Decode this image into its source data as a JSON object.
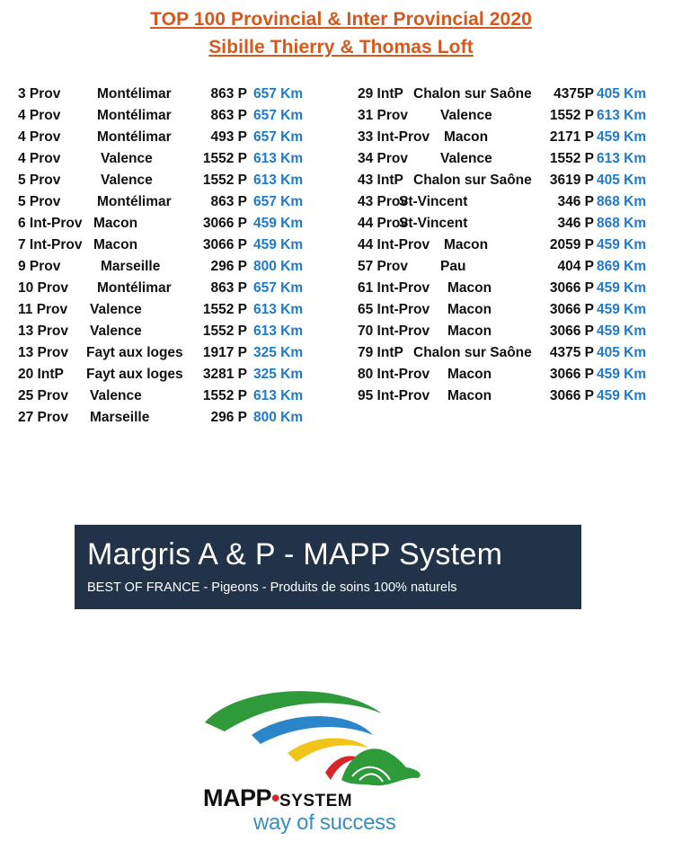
{
  "title_line1": "TOP 100 Provincial & Inter Provincial 2020",
  "title_line2": "Sibille Thierry & Thomas Loft",
  "left_rows": [
    {
      "rank": "3",
      "race": "Prov",
      "place": "Montélimar",
      "points": "863 P",
      "km": "657 Km"
    },
    {
      "rank": "4",
      "race": "Prov",
      "place": "Montélimar",
      "points": "863 P",
      "km": "657 Km"
    },
    {
      "rank": "4",
      "race": "Prov",
      "place": "Montélimar",
      "points": "493 P",
      "km": "657 Km"
    },
    {
      "rank": "4",
      "race": "Prov",
      "place": "Valence",
      "points": "1552 P",
      "km": "613 Km"
    },
    {
      "rank": "5",
      "race": "Prov",
      "place": "Valence",
      "points": "1552 P",
      "km": "613 Km"
    },
    {
      "rank": "5",
      "race": "Prov",
      "place": "Montélimar",
      "points": "863 P",
      "km": "657 Km"
    },
    {
      "rank": "6",
      "race": "Int-Prov",
      "place": "Macon",
      "points": "3066 P",
      "km": "459 Km"
    },
    {
      "rank": "7",
      "race": "Int-Prov",
      "place": "Macon",
      "points": "3066 P",
      "km": "459 Km"
    },
    {
      "rank": "9",
      "race": "Prov",
      "place": "Marseille",
      "points": "296 P",
      "km": "800 Km"
    },
    {
      "rank": "10",
      "race": "Prov",
      "place": "Montélimar",
      "points": "863 P",
      "km": "657 Km"
    },
    {
      "rank": "11",
      "race": "Prov",
      "place": "Valence",
      "points": "1552 P",
      "km": "613 Km"
    },
    {
      "rank": "13",
      "race": "Prov",
      "place": "Valence",
      "points": "1552 P",
      "km": "613 Km"
    },
    {
      "rank": "13",
      "race": "Prov",
      "place": "Fayt aux loges",
      "points": "1917 P",
      "km": "325 Km"
    },
    {
      "rank": "20",
      "race": "IntP",
      "place": "Fayt aux loges",
      "points": "3281 P",
      "km": "325 Km"
    },
    {
      "rank": "25",
      "race": "Prov",
      "place": "Valence",
      "points": "1552 P",
      "km": "613 Km"
    },
    {
      "rank": "27",
      "race": "Prov",
      "place": "Marseille",
      "points": "296  P",
      "km": "800 Km"
    }
  ],
  "right_rows": [
    {
      "rank": "29",
      "race": "IntP",
      "place": "Chalon sur Saône",
      "points": "4375P",
      "km": "405 Km"
    },
    {
      "rank": "31",
      "race": "Prov",
      "place": "Valence",
      "points": "1552 P",
      "km": "613 Km"
    },
    {
      "rank": "33",
      "race": "Int-Prov",
      "place": "Macon",
      "points": "2171 P",
      "km": "459 Km"
    },
    {
      "rank": "34",
      "race": "Prov",
      "place": "Valence",
      "points": "1552 P",
      "km": "613 Km"
    },
    {
      "rank": "43",
      "race": "IntP",
      "place": "Chalon sur Saône",
      "points": "3619 P",
      "km": "405 Km"
    },
    {
      "rank": "43",
      "race": "Prov",
      "place": "St-Vincent",
      "points": "346  P",
      "km": "868 Km"
    },
    {
      "rank": "44",
      "race": "Prov",
      "place": "St-Vincent",
      "points": "346  P",
      "km": "868 Km"
    },
    {
      "rank": "44",
      "race": "Int-Prov",
      "place": "Macon",
      "points": "2059  P",
      "km": "459 Km"
    },
    {
      "rank": "57",
      "race": "Prov",
      "place": "Pau",
      "points": "404  P",
      "km": "869 Km"
    },
    {
      "rank": "61",
      "race": "Int-Prov",
      "place": "Macon",
      "points": "3066  P",
      "km": "459 Km"
    },
    {
      "rank": "65",
      "race": "Int-Prov",
      "place": "Macon",
      "points": "3066  P",
      "km": "459 Km"
    },
    {
      "rank": "70",
      "race": "Int-Prov",
      "place": "Macon",
      "points": "3066  P",
      "km": "459 Km"
    },
    {
      "rank": "79",
      "race": "IntP",
      "place": "Chalon sur Saône",
      "points": "4375 P",
      "km": "405 Km"
    },
    {
      "rank": "80",
      "race": "Int-Prov",
      "place": "Macon",
      "points": "3066  P",
      "km": "459 Km"
    },
    {
      "rank": "95",
      "race": "Int-Prov",
      "place": "Macon",
      "points": "3066  P",
      "km": "459 Km"
    }
  ],
  "banner": {
    "title": "Margris A & P - MAPP System",
    "subtitle": "BEST OF FRANCE - Pigeons - Produits de soins 100% naturels"
  },
  "logo": {
    "brand": "MAPP",
    "brand_suffix": "SYSTEM",
    "tagline": "way of success"
  },
  "colors": {
    "title": "#d4591f",
    "km": "#1f7ac8",
    "banner_bg": "#223349"
  }
}
